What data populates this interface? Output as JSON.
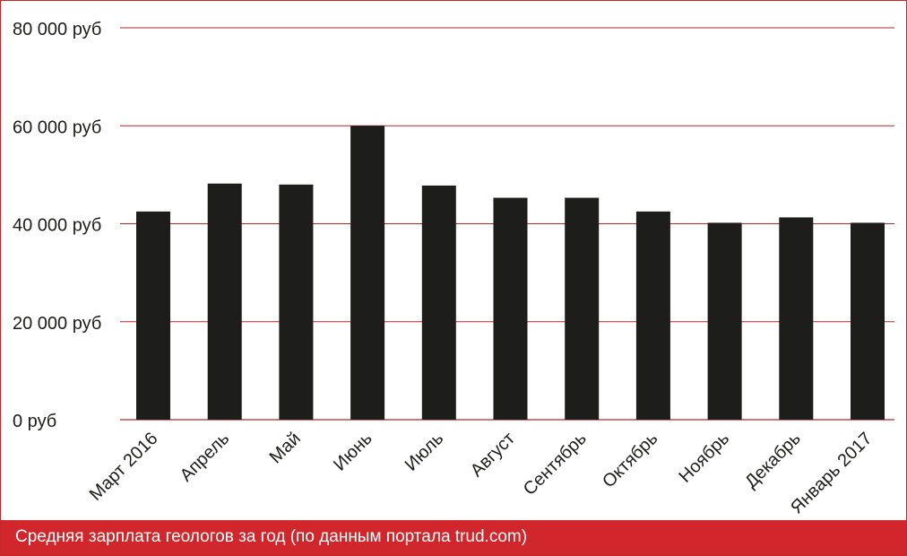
{
  "chart_data": {
    "type": "bar",
    "categories": [
      "Март 2016",
      "Апрель",
      "Май",
      "Июнь",
      "Июль",
      "Август",
      "Сентябрь",
      "Октябрь",
      "Ноябрь",
      "Декабрь",
      "Январь 2017"
    ],
    "values": [
      42500,
      48200,
      48000,
      60000,
      47800,
      45300,
      45300,
      42500,
      40200,
      41300,
      40200
    ],
    "y_ticks": [
      0,
      20000,
      40000,
      60000,
      80000
    ],
    "y_tick_labels": [
      "0 руб",
      "20 000 руб",
      "40 000 руб",
      "60 000 руб",
      "80 000 руб"
    ],
    "ylim": [
      0,
      80000
    ],
    "grid": true,
    "title": "",
    "xlabel": "",
    "ylabel": "",
    "bar_color": "#1d1d1b",
    "grid_color": "#b3262c"
  },
  "caption": "Средняя зарплата геологов за год (по данным портала trud.com)",
  "colors": {
    "accent": "#d1262b",
    "caption_text": "#ffffff"
  }
}
